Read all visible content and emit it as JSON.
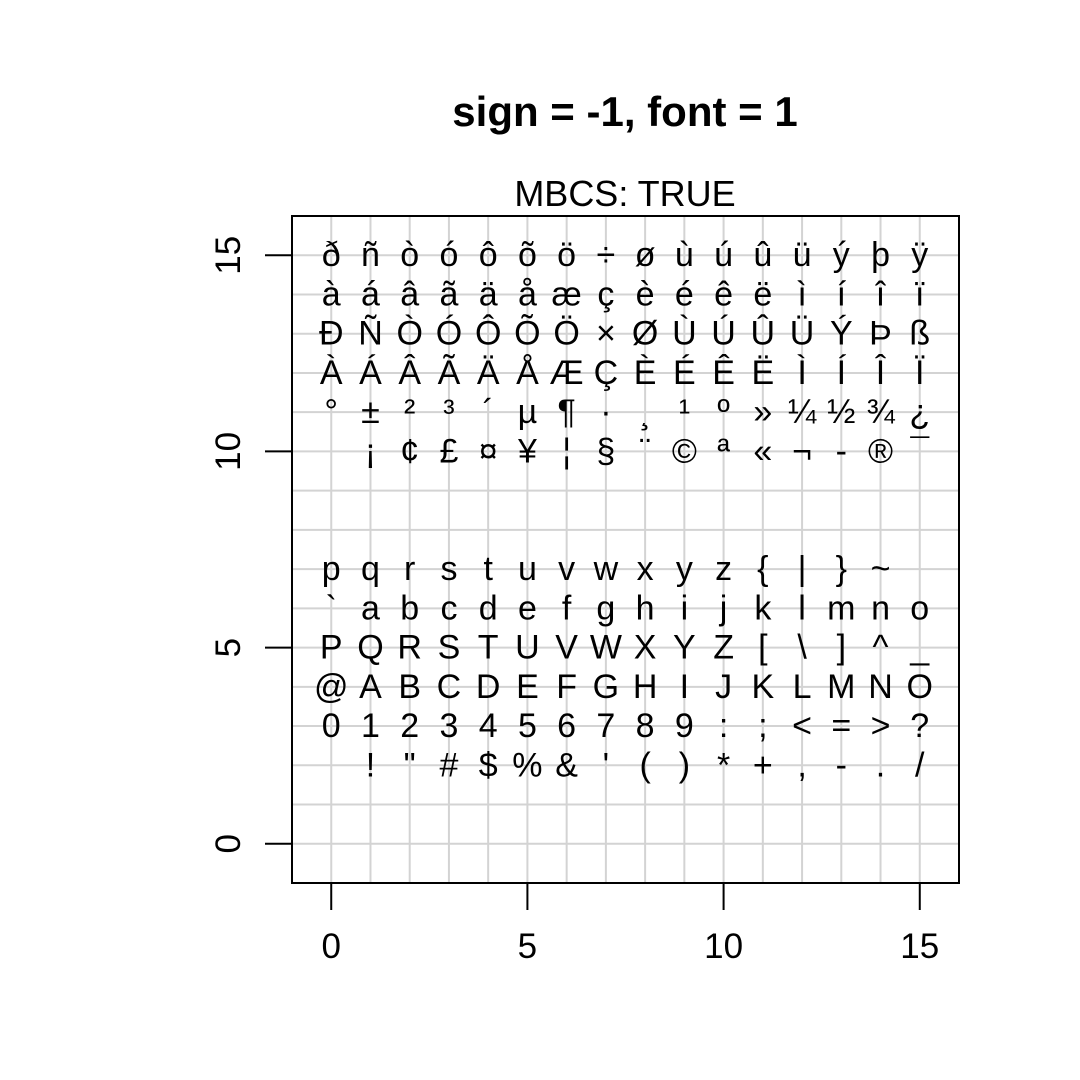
{
  "chart_data": {
    "type": "scatter",
    "title": "sign = -1, font = 1",
    "subtitle": "MBCS: TRUE",
    "xlabel": "",
    "ylabel": "",
    "xlim": [
      -1,
      16
    ],
    "ylim": [
      -1,
      16
    ],
    "x_ticks": [
      0,
      5,
      10,
      15
    ],
    "y_ticks": [
      0,
      5,
      10,
      15
    ],
    "x_tick_labels": [
      "0",
      "5",
      "10",
      "15"
    ],
    "y_tick_labels": [
      "0",
      "5",
      "10",
      "15"
    ],
    "grid": true,
    "grid_x": [
      0,
      1,
      2,
      3,
      4,
      5,
      6,
      7,
      8,
      9,
      10,
      11,
      12,
      13,
      14,
      15
    ],
    "grid_y": [
      0,
      1,
      2,
      3,
      4,
      5,
      6,
      7,
      8,
      9,
      10,
      11,
      12,
      13,
      14,
      15
    ],
    "rows": [
      {
        "y": 15,
        "start_x": 0,
        "chars": [
          "ð",
          "ñ",
          "ò",
          "ó",
          "ô",
          "õ",
          "ö",
          "÷",
          "ø",
          "ù",
          "ú",
          "û",
          "ü",
          "ý",
          "þ",
          "ÿ"
        ]
      },
      {
        "y": 14,
        "start_x": 0,
        "chars": [
          "à",
          "á",
          "â",
          "ã",
          "ä",
          "å",
          "æ",
          "ç",
          "è",
          "é",
          "ê",
          "ë",
          "ì",
          "í",
          "î",
          "ï"
        ]
      },
      {
        "y": 13,
        "start_x": 0,
        "chars": [
          "Ð",
          "Ñ",
          "Ò",
          "Ó",
          "Ô",
          "Õ",
          "Ö",
          "×",
          "Ø",
          "Ù",
          "Ú",
          "Û",
          "Ü",
          "Ý",
          "Þ",
          "ß"
        ]
      },
      {
        "y": 12,
        "start_x": 0,
        "chars": [
          "À",
          "Á",
          "Â",
          "Ã",
          "Ä",
          "Å",
          "Æ",
          "Ç",
          "È",
          "É",
          "Ê",
          "Ë",
          "Ì",
          "Í",
          "Î",
          "Ï"
        ]
      },
      {
        "y": 11,
        "start_x": 0,
        "chars": [
          "°",
          "±",
          "²",
          "³",
          "´",
          "µ",
          "¶",
          "·",
          "¸",
          "¹",
          "º",
          "»",
          "¼",
          "½",
          "¾",
          "¿"
        ]
      },
      {
        "y": 10,
        "start_x": 1,
        "chars": [
          "¡",
          "¢",
          "£",
          "¤",
          "¥",
          "¦",
          "§",
          "¨",
          "©",
          "ª",
          "«",
          "¬",
          "-",
          "®",
          "¯"
        ]
      },
      {
        "y": 7,
        "start_x": 0,
        "chars": [
          "p",
          "q",
          "r",
          "s",
          "t",
          "u",
          "v",
          "w",
          "x",
          "y",
          "z",
          "{",
          "|",
          "}",
          "~"
        ]
      },
      {
        "y": 6,
        "start_x": 0,
        "chars": [
          "`",
          "a",
          "b",
          "c",
          "d",
          "e",
          "f",
          "g",
          "h",
          "i",
          "j",
          "k",
          "l",
          "m",
          "n",
          "o"
        ]
      },
      {
        "y": 5,
        "start_x": 0,
        "chars": [
          "P",
          "Q",
          "R",
          "S",
          "T",
          "U",
          "V",
          "W",
          "X",
          "Y",
          "Z",
          "[",
          "\\",
          "]",
          "^",
          "_"
        ]
      },
      {
        "y": 4,
        "start_x": 0,
        "chars": [
          "@",
          "A",
          "B",
          "C",
          "D",
          "E",
          "F",
          "G",
          "H",
          "I",
          "J",
          "K",
          "L",
          "M",
          "N",
          "O"
        ]
      },
      {
        "y": 3,
        "start_x": 0,
        "chars": [
          "0",
          "1",
          "2",
          "3",
          "4",
          "5",
          "6",
          "7",
          "8",
          "9",
          ":",
          ";",
          "<",
          "=",
          ">",
          "?"
        ]
      },
      {
        "y": 2,
        "start_x": 1,
        "chars": [
          "!",
          "\"",
          "#",
          "$",
          "%",
          "&",
          "'",
          "(",
          ")",
          "*",
          "+",
          ",",
          "-",
          ".",
          "/"
        ]
      }
    ]
  }
}
